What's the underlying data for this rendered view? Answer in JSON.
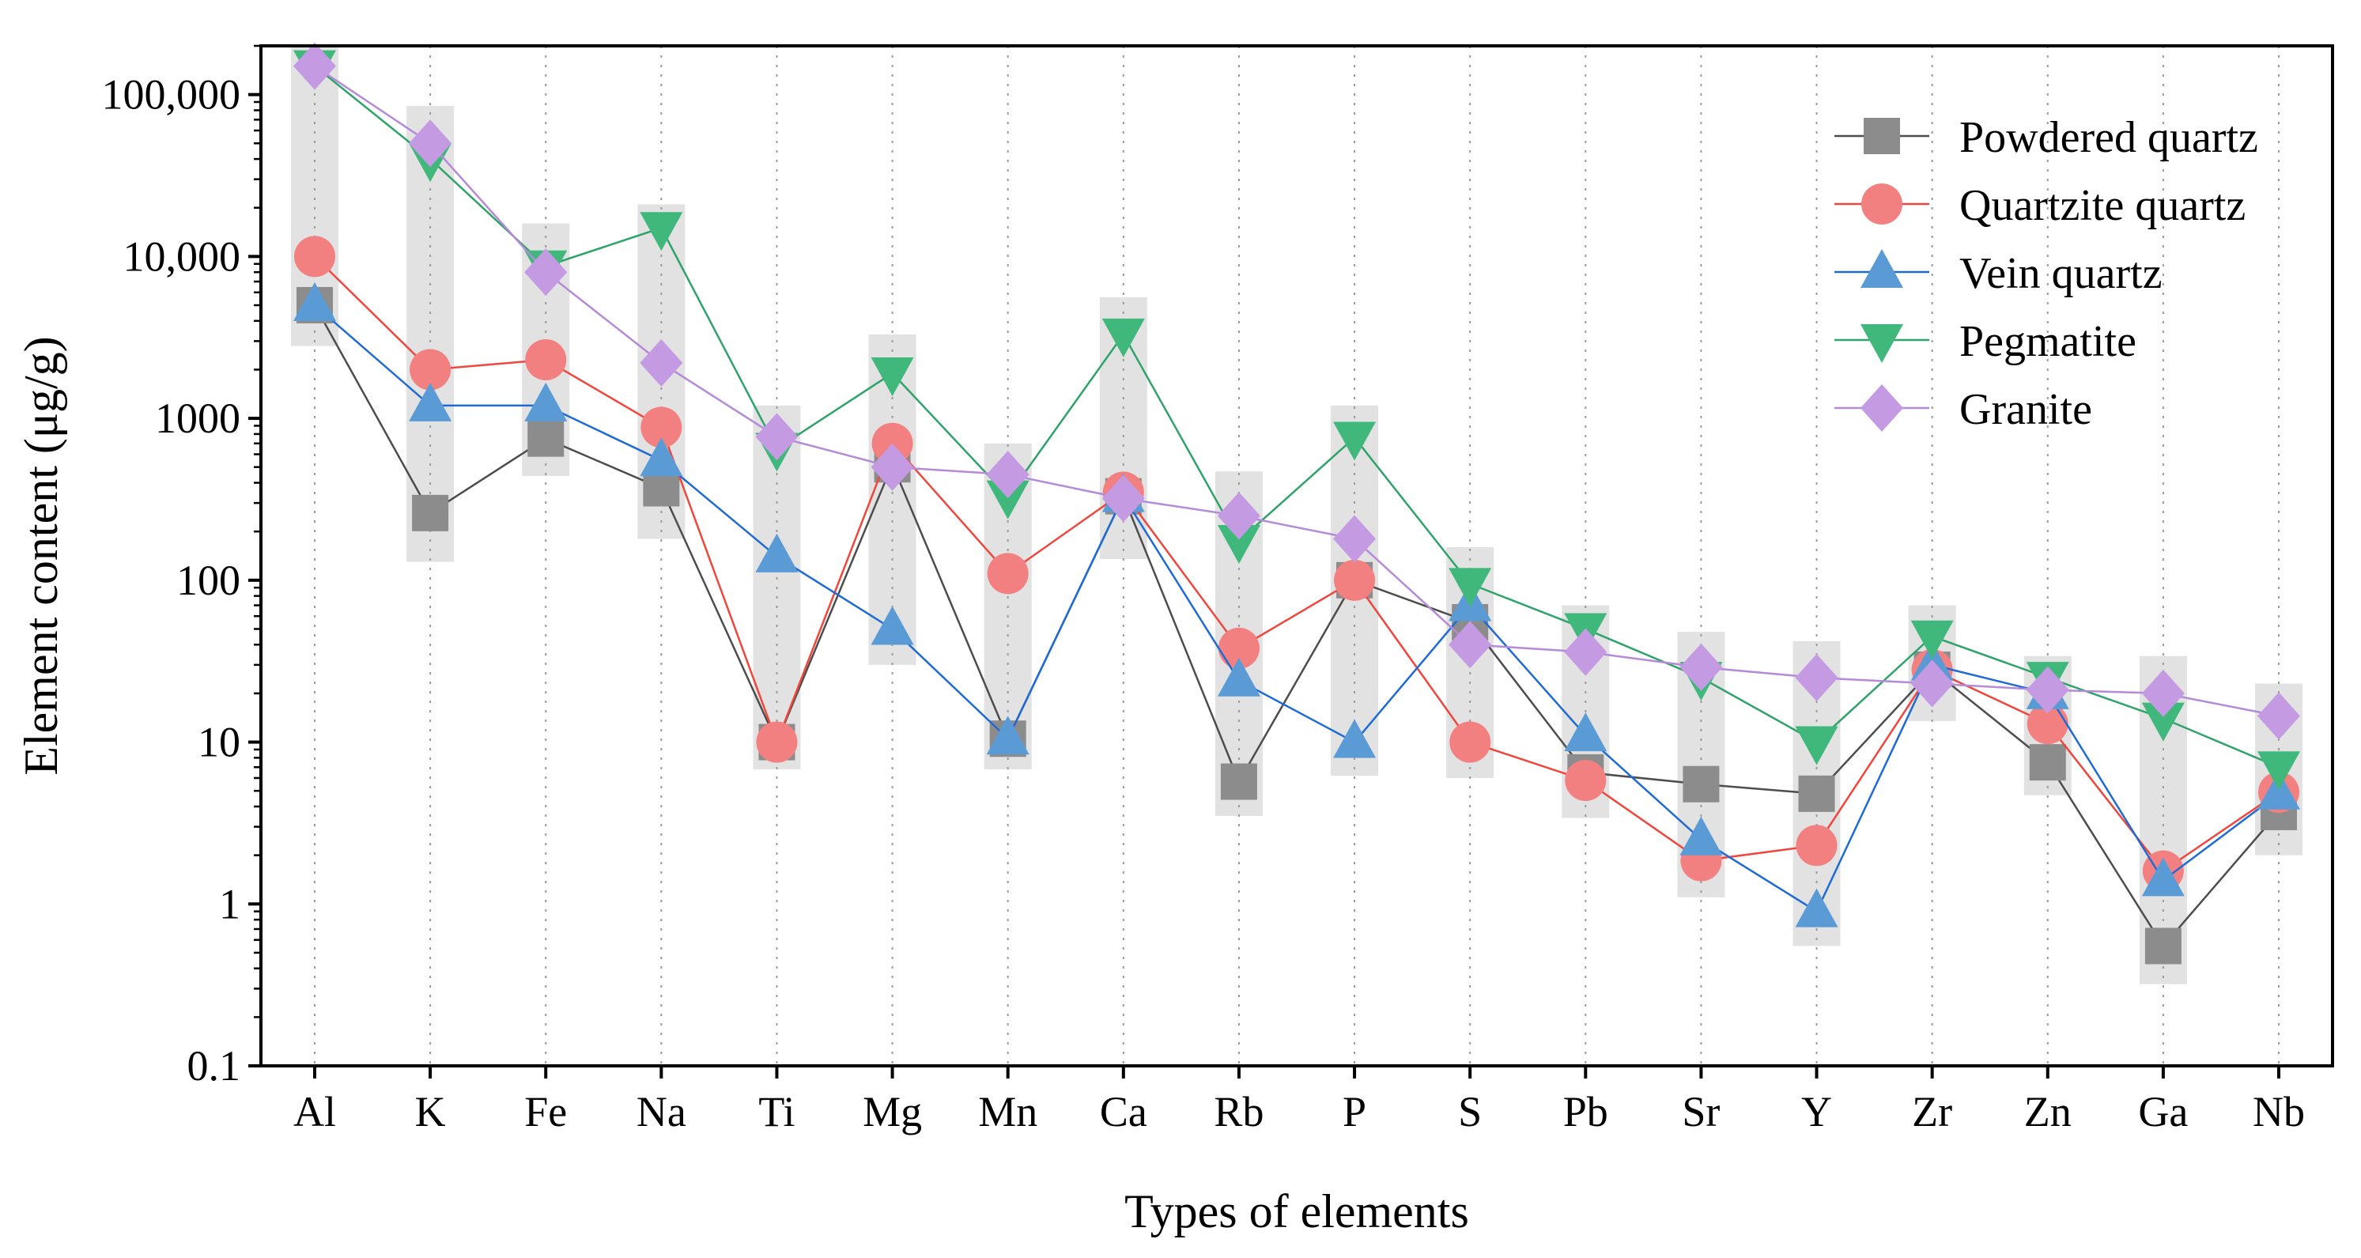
{
  "chart_data": {
    "type": "line",
    "title": "",
    "xlabel": "Types of elements",
    "ylabel": "Element content (μg/g)",
    "yscale": "log",
    "ylim": [
      0.1,
      200000
    ],
    "yticks": [
      {
        "value": 0.1,
        "label": "0.1"
      },
      {
        "value": 1,
        "label": "1"
      },
      {
        "value": 10,
        "label": "10"
      },
      {
        "value": 100,
        "label": "100"
      },
      {
        "value": 1000,
        "label": "1000"
      },
      {
        "value": 10000,
        "label": "10,000"
      },
      {
        "value": 100000,
        "label": "100,000"
      }
    ],
    "categories": [
      "Al",
      "K",
      "Fe",
      "Na",
      "Ti",
      "Mg",
      "Mn",
      "Ca",
      "Rb",
      "P",
      "S",
      "Pb",
      "Sr",
      "Y",
      "Zr",
      "Zn",
      "Ga",
      "Nb"
    ],
    "grid": "vertical-dotted",
    "legend_position": "top-right",
    "range_bars": [
      [
        2800,
        200000
      ],
      [
        130,
        85000
      ],
      [
        440,
        16000
      ],
      [
        180,
        21000
      ],
      [
        6.8,
        1200
      ],
      [
        30,
        3300
      ],
      [
        6.8,
        700
      ],
      [
        135,
        5600
      ],
      [
        3.5,
        470
      ],
      [
        6.2,
        1200
      ],
      [
        6,
        160
      ],
      [
        3.4,
        70
      ],
      [
        1.1,
        48
      ],
      [
        0.55,
        42
      ],
      [
        13.5,
        70
      ],
      [
        4.7,
        34
      ],
      [
        0.32,
        34
      ],
      [
        2,
        23
      ]
    ],
    "series": [
      {
        "name": "Powdered quartz",
        "marker": "square",
        "line_color": "#4d4d4d",
        "marker_color": "#8c8c8c",
        "values": [
          5000,
          260,
          750,
          370,
          10,
          520,
          10.5,
          330,
          5.7,
          100,
          55,
          6.5,
          5.5,
          4.8,
          28,
          7.5,
          0.55,
          3.7
        ]
      },
      {
        "name": "Quartzite quartz",
        "marker": "circle",
        "line_color": "#f0463c",
        "marker_color": "#f38080",
        "values": [
          10000,
          2000,
          2300,
          880,
          10,
          700,
          110,
          350,
          38,
          100,
          10,
          5.8,
          1.85,
          2.3,
          28,
          13,
          1.6,
          4.9
        ]
      },
      {
        "name": "Vein quartz",
        "marker": "triangle-up",
        "line_color": "#1f6bd6",
        "marker_color": "#5b9bd5",
        "values": [
          5000,
          1200,
          1200,
          550,
          140,
          50,
          10.5,
          330,
          24,
          10,
          70,
          11,
          2.5,
          0.9,
          30,
          20,
          1.4,
          4.8
        ]
      },
      {
        "name": "Pegmatite",
        "marker": "triangle-down",
        "line_color": "#2ea36a",
        "marker_color": "#40b87c",
        "values": [
          150000,
          40000,
          8700,
          15000,
          650,
          1900,
          330,
          3300,
          175,
          760,
          95,
          50,
          25,
          10,
          45,
          25,
          14,
          7
        ]
      },
      {
        "name": "Granite",
        "marker": "diamond",
        "line_color": "#b58ad9",
        "marker_color": "#c49ae3",
        "values": [
          150000,
          50000,
          8000,
          2200,
          770,
          500,
          450,
          320,
          250,
          180,
          40,
          36,
          29,
          25,
          23,
          21,
          20,
          14.5
        ]
      }
    ]
  }
}
